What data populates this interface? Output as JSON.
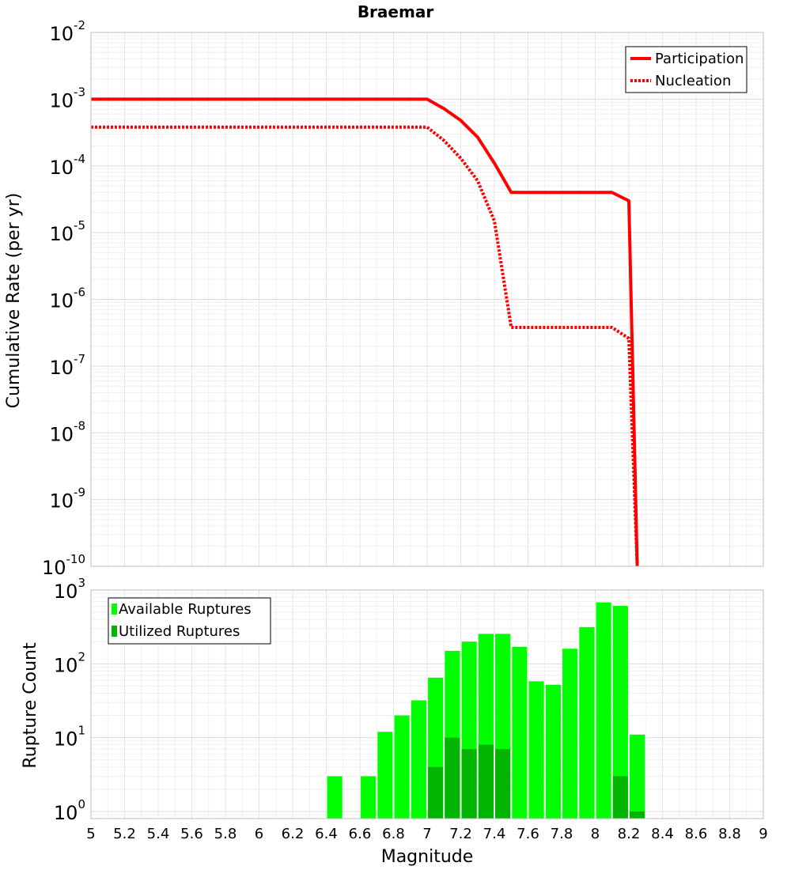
{
  "chart_data": [
    {
      "type": "line",
      "title": "Braemar",
      "ylabel": "Cumulative Rate (per yr)",
      "xlabel": "",
      "yscale": "log",
      "ylim_exponents": [
        -10,
        -2
      ],
      "xlim": [
        5,
        9
      ],
      "yticks": [
        {
          "base": "10",
          "exp": "-2"
        },
        {
          "base": "10",
          "exp": "-3"
        },
        {
          "base": "10",
          "exp": "-4"
        },
        {
          "base": "10",
          "exp": "-5"
        },
        {
          "base": "10",
          "exp": "-6"
        },
        {
          "base": "10",
          "exp": "-7"
        },
        {
          "base": "10",
          "exp": "-8"
        },
        {
          "base": "10",
          "exp": "-9"
        },
        {
          "base": "10",
          "exp": "-10"
        }
      ],
      "legend": {
        "position": "top-right"
      },
      "series": [
        {
          "name": "Participation",
          "color": "#ff0000",
          "style": "solid",
          "x": [
            5.0,
            7.0,
            7.1,
            7.2,
            7.3,
            7.4,
            7.5,
            7.6,
            7.7,
            7.8,
            7.9,
            8.0,
            8.1,
            8.2,
            8.25
          ],
          "y": [
            0.001,
            0.001,
            0.00072,
            0.00048,
            0.00027,
            0.00011,
            4e-05,
            4e-05,
            4e-05,
            4e-05,
            4e-05,
            4e-05,
            4e-05,
            3e-05,
            1e-10
          ]
        },
        {
          "name": "Nucleation",
          "color": "#ff0000",
          "style": "dotted",
          "x": [
            5.0,
            7.0,
            7.1,
            7.2,
            7.3,
            7.4,
            7.5,
            7.6,
            7.7,
            7.8,
            7.9,
            8.0,
            8.1,
            8.2,
            8.25
          ],
          "y": [
            0.00038,
            0.00038,
            0.00024,
            0.00013,
            6e-05,
            1.5e-05,
            3.8e-07,
            3.8e-07,
            3.8e-07,
            3.8e-07,
            3.8e-07,
            3.8e-07,
            3.8e-07,
            2.6e-07,
            1e-10
          ]
        }
      ]
    },
    {
      "type": "bar",
      "title": "",
      "ylabel": "Rupture Count",
      "xlabel": "Magnitude",
      "yscale": "log",
      "ylim": [
        0.8,
        1000
      ],
      "xlim": [
        5,
        9
      ],
      "yticks": [
        {
          "base": "10",
          "exp": "3"
        },
        {
          "base": "10",
          "exp": "2"
        },
        {
          "base": "10",
          "exp": "1"
        },
        {
          "base": "10",
          "exp": "0"
        }
      ],
      "xticks": [
        "5",
        "5.2",
        "5.4",
        "5.6",
        "5.8",
        "6",
        "6.2",
        "6.4",
        "6.6",
        "6.8",
        "7",
        "7.2",
        "7.4",
        "7.6",
        "7.8",
        "8",
        "8.2",
        "8.4",
        "8.6",
        "8.8",
        "9"
      ],
      "legend": {
        "position": "top-left"
      },
      "bar_width": 0.09,
      "series": [
        {
          "name": "Available Ruptures",
          "color": "#00ff00",
          "x": [
            6.45,
            6.65,
            6.75,
            6.85,
            6.95,
            7.05,
            7.15,
            7.25,
            7.35,
            7.45,
            7.55,
            7.65,
            7.75,
            7.85,
            7.95,
            8.05,
            8.15,
            8.25
          ],
          "values": [
            3,
            3,
            12,
            20,
            32,
            65,
            150,
            200,
            255,
            255,
            170,
            58,
            52,
            160,
            315,
            680,
            610,
            11
          ]
        },
        {
          "name": "Utilized Ruptures",
          "color": "#00b400",
          "x": [
            7.05,
            7.15,
            7.25,
            7.35,
            7.45,
            8.15,
            8.25
          ],
          "values": [
            4,
            10,
            7,
            8,
            7,
            3,
            1
          ]
        }
      ]
    }
  ]
}
